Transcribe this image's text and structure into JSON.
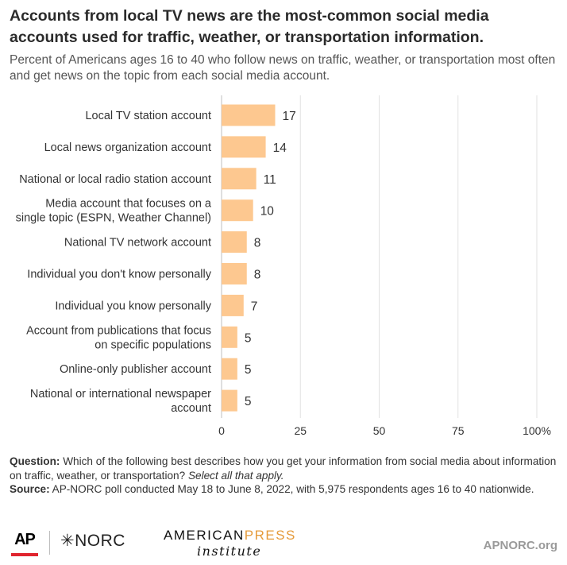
{
  "title": "Accounts from local TV news are the most-common social media accounts used for traffic, weather, or transportation information.",
  "subtitle": "Percent of Americans ages 16 to 40 who follow news on traffic, weather, or transportation most often and get news on the topic from each social media account.",
  "chart_data": {
    "type": "bar",
    "orientation": "horizontal",
    "categories": [
      [
        "Local TV station account"
      ],
      [
        "Local news organization account"
      ],
      [
        "National or local radio station account"
      ],
      [
        "Media account that focuses on a",
        "single topic (ESPN, Weather Channel)"
      ],
      [
        "National TV network account"
      ],
      [
        "Individual you don't know personally"
      ],
      [
        "Individual you know personally"
      ],
      [
        "Account from publications that focus",
        "on specific populations"
      ],
      [
        "Online-only publisher account"
      ],
      [
        "National or international newspaper",
        "account"
      ]
    ],
    "values": [
      17,
      14,
      11,
      10,
      8,
      8,
      7,
      5,
      5,
      5
    ],
    "xlim": [
      0,
      100
    ],
    "ticks": [
      "0",
      "25",
      "50",
      "75",
      "100%"
    ],
    "tick_values": [
      0,
      25,
      50,
      75,
      100
    ],
    "grid": true,
    "bar_color": "#fdc890"
  },
  "notes": {
    "question_label": "Question:",
    "question_text": " Which of the following best describes how you get your information from social media about information on traffic, weather, or transportation? ",
    "question_italic": "Select all that apply.",
    "source_label": "Source:",
    "source_text": " AP-NORC poll conducted May 18 to June 8, 2022, with 5,975 respondents ages 16 to 40 nationwide."
  },
  "footer": {
    "ap": "AP",
    "norc": "✳NORC",
    "api_line1_a": "AMERICAN",
    "api_line1_b": "PRESS",
    "api_line2": "institute",
    "site": "APNORC.org",
    "ap_red": "#e0242e",
    "api_accent": "#e59b3b"
  }
}
